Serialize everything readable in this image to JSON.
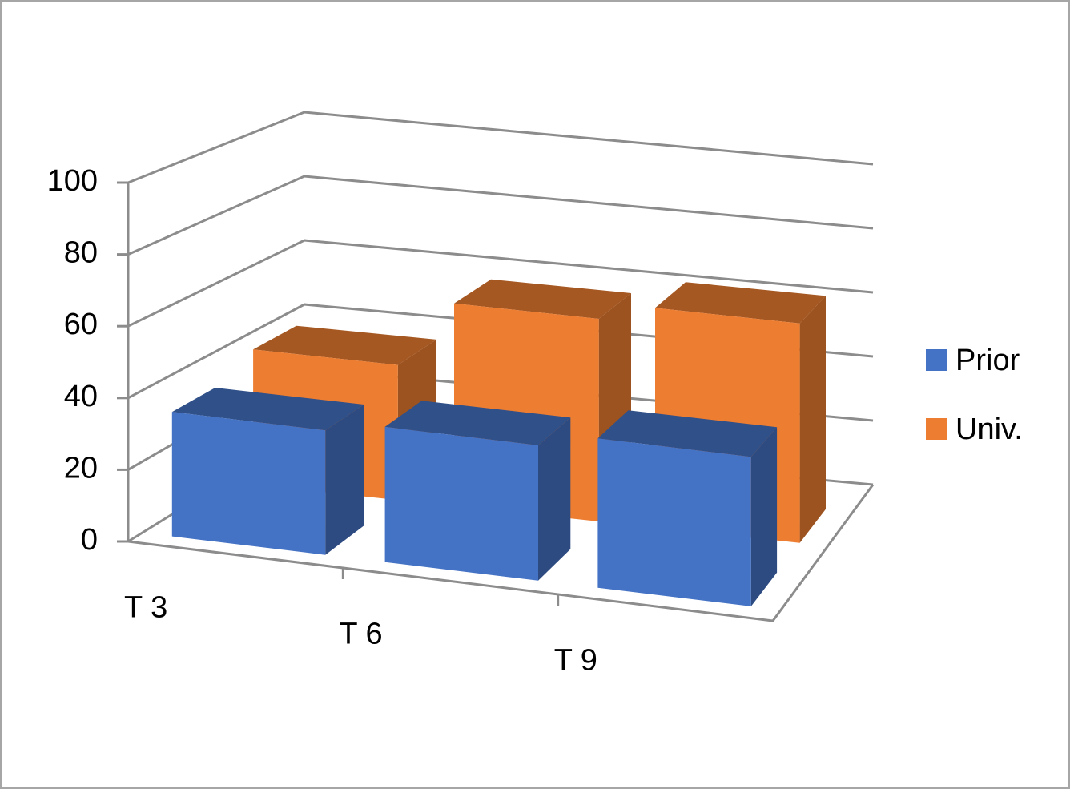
{
  "chart_data": {
    "type": "bar3d",
    "categories": [
      "T 3",
      "T 6",
      "T 9"
    ],
    "series": [
      {
        "name": "Prior",
        "color": "#4472c4",
        "values": [
          35,
          38,
          42
        ]
      },
      {
        "name": "Univ.",
        "color": "#ed7d31",
        "values": [
          40,
          60,
          65
        ]
      }
    ],
    "ylim": [
      0,
      100
    ],
    "yticks": [
      0,
      20,
      40,
      60,
      80,
      100
    ],
    "grid": true,
    "legend": "right"
  }
}
